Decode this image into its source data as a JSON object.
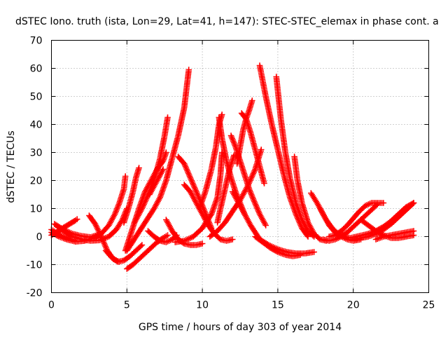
{
  "chart_data": {
    "type": "scatter",
    "title": "dSTEC Iono. truth (ista, Lon=29, Lat=41, h=147): STEC-STEC_elemax in phase cont. a",
    "xlabel": "GPS time / hours of day 303 of year 2014",
    "ylabel": "dSTEC  / TECUs",
    "xlim": [
      0,
      25
    ],
    "ylim": [
      -20,
      70
    ],
    "xticks": [
      0,
      5,
      10,
      15,
      20,
      25
    ],
    "yticks": [
      -20,
      -10,
      0,
      10,
      20,
      30,
      40,
      50,
      60,
      70
    ],
    "grid": true,
    "legend": "none",
    "marker": "plus",
    "marker_color": "#ff0000",
    "series": [
      {
        "x": [
          0,
          0.3,
          0.6,
          0.9,
          1.2,
          1.5
        ],
        "y": [
          2.5,
          1.5,
          0.5,
          -0.3,
          -0.9,
          -1.3
        ]
      },
      {
        "x": [
          0,
          0.4,
          0.8,
          1.2,
          1.6,
          1.7
        ],
        "y": [
          0.5,
          1.8,
          3.2,
          4.5,
          5.8,
          6.2
        ]
      },
      {
        "x": [
          0.2,
          0.8,
          1.4,
          2.0,
          2.6,
          3.0,
          3.2
        ],
        "y": [
          4.5,
          2.5,
          1.0,
          0.2,
          -0.2,
          0.5,
          1.0
        ]
      },
      {
        "x": [
          0.4,
          0.9,
          1.4,
          2.0,
          2.6,
          3.2,
          3.8,
          4.3,
          4.7,
          5.0
        ],
        "y": [
          3.5,
          1.5,
          0,
          -1.0,
          -1.5,
          -1.3,
          0,
          2.5,
          6.0,
          10.0
        ]
      },
      {
        "x": [
          0,
          0.5,
          1.0,
          1.6,
          2.2,
          2.8,
          3.3,
          3.8,
          4.2,
          4.5,
          4.8,
          4.9
        ],
        "y": [
          1.5,
          0,
          -1.0,
          -1.8,
          -1.5,
          -0.5,
          1.0,
          4.0,
          8.0,
          12.0,
          17.0,
          21.5
        ]
      },
      {
        "x": [
          2.5,
          2.9,
          3.3,
          3.7,
          4.1,
          4.5
        ],
        "y": [
          7.5,
          4.5,
          0,
          -5.0,
          -8.0,
          -9.0
        ]
      },
      {
        "x": [
          3.6,
          4.0,
          4.4,
          4.8,
          5.2,
          5.6,
          6.0
        ],
        "y": [
          -5.0,
          -7.5,
          -9.0,
          -8.5,
          -7.0,
          -5.0,
          -3.0
        ]
      },
      {
        "x": [
          5.0,
          5.4,
          5.8,
          6.2,
          6.6,
          7.0,
          7.4,
          7.7
        ],
        "y": [
          -11.5,
          -10.0,
          -8.0,
          -6.0,
          -4.0,
          -2.0,
          -0.5,
          0.5
        ]
      },
      {
        "x": [
          4.9,
          5.2,
          5.5,
          5.8,
          6.0,
          6.2,
          6.6,
          7.0,
          7.4,
          7.6
        ],
        "y": [
          -5.0,
          0,
          5.0,
          10.0,
          13.0,
          16.0,
          20.0,
          24.0,
          27.0,
          30.0
        ]
      },
      {
        "x": [
          4.8,
          5.1,
          5.4,
          5.6,
          5.8
        ],
        "y": [
          5.0,
          10.0,
          16.0,
          21.0,
          24.5
        ]
      },
      {
        "x": [
          5.5,
          6.0,
          6.5,
          6.9,
          7.2,
          7.5,
          7.7
        ],
        "y": [
          5.0,
          10.0,
          16.0,
          22.0,
          28.0,
          36.0,
          42.5
        ]
      },
      {
        "x": [
          6.5,
          6.8,
          7.0,
          7.2,
          7.4
        ],
        "y": [
          15.0,
          18.0,
          20.0,
          22.0,
          24.0
        ]
      },
      {
        "x": [
          5.0,
          5.6,
          6.2,
          6.8,
          7.2,
          7.6,
          8.0,
          8.4,
          8.8,
          9.1
        ],
        "y": [
          -5.0,
          0,
          5.0,
          10.0,
          14.0,
          20.0,
          28.0,
          36.0,
          46.0,
          59.5
        ]
      },
      {
        "x": [
          6.4,
          6.8,
          7.2,
          7.6,
          8.0,
          8.3
        ],
        "y": [
          2.0,
          0,
          -1.5,
          -2.0,
          -1.0,
          0.5
        ]
      },
      {
        "x": [
          7.6,
          8.0,
          8.4,
          8.8,
          9.2,
          9.6,
          10.0
        ],
        "y": [
          6.0,
          2.0,
          -1.0,
          -2.5,
          -3.0,
          -3.0,
          -2.5
        ]
      },
      {
        "x": [
          8.4,
          8.8,
          9.2,
          9.6,
          10.0,
          10.3,
          10.6
        ],
        "y": [
          28.5,
          26.0,
          21.0,
          16.0,
          11.0,
          7.0,
          3.0
        ]
      },
      {
        "x": [
          8.8,
          9.2,
          9.6,
          10.0,
          10.4,
          10.8,
          11.2,
          11.6,
          12.0
        ],
        "y": [
          18.5,
          16.0,
          12.0,
          8.0,
          4.0,
          1.0,
          -1.0,
          -1.5,
          -1.0
        ]
      },
      {
        "x": [
          9.8,
          10.2,
          10.6,
          10.9,
          11.1,
          11.3
        ],
        "y": [
          10.0,
          16.0,
          24.0,
          32.0,
          40.0,
          43.5
        ]
      },
      {
        "x": [
          8.2,
          8.8,
          9.4,
          10.0,
          10.6,
          11.0,
          11.2,
          11.3
        ],
        "y": [
          -2.0,
          -1.5,
          0,
          3.0,
          8.0,
          14.0,
          22.0,
          30.0
        ]
      },
      {
        "x": [
          11.0,
          11.2,
          11.5,
          11.8,
          12.1,
          12.3
        ],
        "y": [
          5.0,
          10.0,
          17.0,
          24.0,
          29.0,
          29.0
        ]
      },
      {
        "x": [
          11.1,
          11.3,
          11.6,
          11.9,
          12.2,
          12.5,
          12.8
        ],
        "y": [
          42.5,
          35.0,
          27.0,
          21.0,
          16.0,
          12.0,
          8.0
        ]
      },
      {
        "x": [
          10.5,
          11.0,
          11.5,
          12.0,
          12.5,
          13.0,
          13.5,
          13.9
        ],
        "y": [
          0,
          2.0,
          5.0,
          9.0,
          13.0,
          18.0,
          24.0,
          31.0
        ]
      },
      {
        "x": [
          11.9,
          12.2,
          12.5,
          12.8,
          13.1,
          13.4,
          13.8,
          14.2
        ],
        "y": [
          36.0,
          32.0,
          27.0,
          22.0,
          17.0,
          13.0,
          8.0,
          4.0
        ]
      },
      {
        "x": [
          12.3,
          12.5,
          12.7,
          12.9,
          13.1,
          13.3
        ],
        "y": [
          26.0,
          32.0,
          38.0,
          42.0,
          45.0,
          48.5
        ]
      },
      {
        "x": [
          12.6,
          12.9,
          13.2,
          13.5,
          13.8,
          14.1
        ],
        "y": [
          44.0,
          42.0,
          37.0,
          31.0,
          25.0,
          19.0
        ]
      },
      {
        "x": [
          12.0,
          12.6,
          13.2,
          13.8,
          14.4,
          15.0,
          15.6,
          16.2,
          16.8,
          17.4
        ],
        "y": [
          16.0,
          10.0,
          4.0,
          -1.0,
          -3.0,
          -4.5,
          -5.5,
          -6.0,
          -6.0,
          -5.5
        ]
      },
      {
        "x": [
          13.5,
          14.0,
          14.5,
          15.0,
          15.5,
          16.0,
          16.5
        ],
        "y": [
          0,
          -2.0,
          -4.0,
          -5.5,
          -6.5,
          -7.0,
          -6.5
        ]
      },
      {
        "x": [
          13.8,
          14.2,
          14.6,
          15.0,
          15.4,
          15.8,
          16.2,
          16.6,
          17.0
        ],
        "y": [
          61.0,
          50.0,
          40.0,
          31.0,
          22.0,
          14.0,
          8.0,
          3.0,
          0
        ]
      },
      {
        "x": [
          14.9,
          15.2,
          15.5,
          15.8,
          16.2,
          16.6,
          17.0,
          17.4
        ],
        "y": [
          57.0,
          42.0,
          30.0,
          21.0,
          12.0,
          6.0,
          2.0,
          0
        ]
      },
      {
        "x": [
          16.1,
          16.3,
          16.6,
          17.0,
          17.4,
          17.8,
          18.2
        ],
        "y": [
          28.5,
          20.0,
          12.0,
          5.0,
          1.0,
          -1.0,
          -1.5
        ]
      },
      {
        "x": [
          17.2,
          17.6,
          18.0,
          18.4,
          18.8,
          19.2,
          19.6,
          20.0,
          20.5
        ],
        "y": [
          15.5,
          12.0,
          8.0,
          4.0,
          1.5,
          0,
          -1.0,
          -1.5,
          -1.0
        ]
      },
      {
        "x": [
          17.8,
          18.2,
          18.6,
          19.0,
          19.4,
          19.8,
          20.2,
          20.6,
          21.0
        ],
        "y": [
          10.0,
          6.0,
          3.0,
          1.0,
          0,
          -0.5,
          0,
          0.5,
          1.0
        ]
      },
      {
        "x": [
          18.0,
          18.4,
          18.8,
          19.2,
          19.6,
          20.0,
          20.4,
          20.8,
          21.2,
          21.6
        ],
        "y": [
          -1.0,
          -1.5,
          -1.0,
          0,
          1.5,
          3.5,
          5.5,
          7.5,
          9.5,
          11.5
        ]
      },
      {
        "x": [
          18.4,
          18.8,
          19.2,
          19.6,
          20.0,
          20.4,
          20.8,
          21.2,
          21.6,
          22.0
        ],
        "y": [
          0,
          0.5,
          2.0,
          4.0,
          6.5,
          9.0,
          11.0,
          12.0,
          12.0,
          12.0
        ]
      },
      {
        "x": [
          20.0,
          20.5,
          21.0,
          21.5,
          22.0,
          22.5,
          23.0,
          23.5,
          24.0
        ],
        "y": [
          -1.0,
          -0.5,
          0,
          1.0,
          2.5,
          4.5,
          7.0,
          9.5,
          12.0
        ]
      },
      {
        "x": [
          21.0,
          21.5,
          22.0,
          22.5,
          23.0,
          23.5,
          24.0
        ],
        "y": [
          1.0,
          2.0,
          3.5,
          5.5,
          8.0,
          10.5,
          12.0
        ]
      },
      {
        "x": [
          20.5,
          21.0,
          21.5,
          22.0,
          22.5,
          23.0,
          23.5,
          24.0
        ],
        "y": [
          6.0,
          4.0,
          2.0,
          0.5,
          -0.5,
          -0.5,
          0,
          0.5
        ]
      },
      {
        "x": [
          21.5,
          22.0,
          22.5,
          23.0,
          23.5,
          24.0
        ],
        "y": [
          -1.0,
          0,
          0.5,
          1.0,
          1.5,
          2.0
        ]
      }
    ]
  }
}
